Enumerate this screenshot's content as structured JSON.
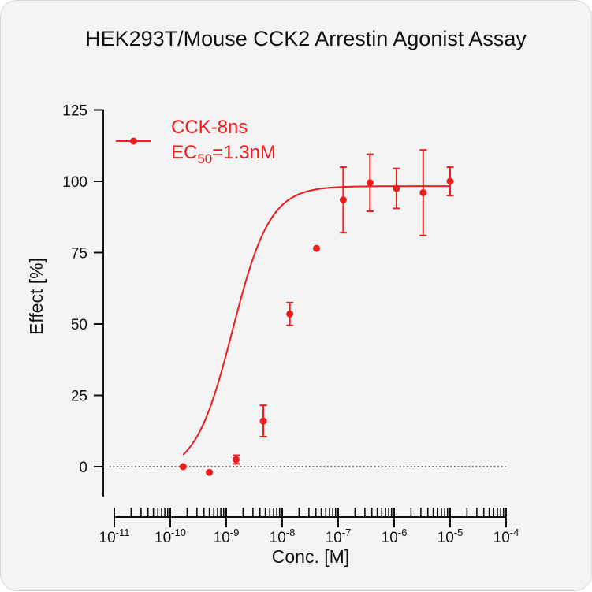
{
  "chart_data": {
    "type": "scatter",
    "title": "HEK293T/Mouse CCK2 Arrestin Agonist Assay",
    "xlabel": "Conc. [M]",
    "ylabel": "Effect  [%]",
    "x_scale": "log",
    "xlim": [
      1e-11,
      0.0001
    ],
    "ylim": [
      -10,
      125
    ],
    "x_ticks": [
      {
        "base": "10",
        "exp": "-11"
      },
      {
        "base": "10",
        "exp": "-10"
      },
      {
        "base": "10",
        "exp": "-9"
      },
      {
        "base": "10",
        "exp": "-8"
      },
      {
        "base": "10",
        "exp": "-7"
      },
      {
        "base": "10",
        "exp": "-6"
      },
      {
        "base": "10",
        "exp": "-5"
      },
      {
        "base": "10",
        "exp": "-4"
      }
    ],
    "y_ticks": [
      "0",
      "25",
      "50",
      "75",
      "100",
      "125"
    ],
    "baseline": 0,
    "color": "#ee1c1c",
    "series": [
      {
        "name": "CCK-8ns",
        "ec50_label": {
          "prefix": "EC",
          "sub": "50",
          "suffix": "=1.3nM"
        },
        "ec50": 1.3e-09,
        "fit": {
          "bottom": -2.5,
          "top": 98.3,
          "hill": 1.3
        },
        "x": [
          1.7e-10,
          5e-10,
          1.5e-09,
          4.6e-09,
          1.37e-08,
          4.1e-08,
          1.23e-07,
          3.7e-07,
          1.1e-06,
          3.3e-06,
          1e-05
        ],
        "y": [
          0,
          -2,
          2.5,
          16,
          53.5,
          76.5,
          93.5,
          99.5,
          97.5,
          96,
          100
        ],
        "err": [
          0,
          0,
          1.5,
          5.5,
          4,
          0,
          11.5,
          10,
          7,
          15,
          5
        ]
      }
    ]
  }
}
